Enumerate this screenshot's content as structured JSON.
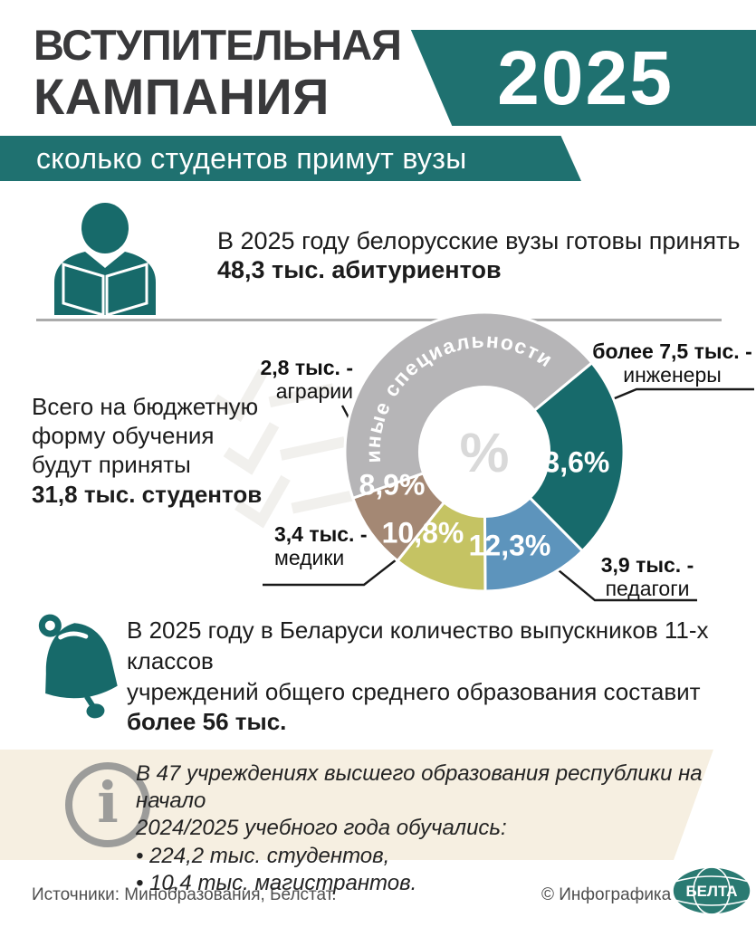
{
  "header": {
    "title_line1": "ВСТУПИТЕЛЬНАЯ",
    "title_line2": "КАМПАНИЯ",
    "year_badge": "2025",
    "subtitle_banner": "сколько студентов примут вузы"
  },
  "colors": {
    "accent_teal": "#1f7170",
    "icon_teal": "#176a6a",
    "header_text": "#39393b",
    "info_box_bg": "#f6efe1"
  },
  "fact_admission": {
    "line1": "В 2025 году белорусские вузы готовы принять",
    "line2_bold": "48,3 тыс. абитуриентов"
  },
  "budget_note": {
    "lines": [
      "Всего на бюджетную",
      "форму обучения",
      "будут приняты"
    ],
    "bold_line": "31,8 тыс. студентов"
  },
  "chart_data": {
    "type": "donut",
    "title": "сколько студентов примут вузы",
    "center_label": "%",
    "start_angle_deg": 50.4,
    "segments": [
      {
        "label": "инженеры",
        "value_label": "более 7,5 тыс.",
        "value_pct": 23.6,
        "pct_label": "23,6%",
        "color": "#176a6b"
      },
      {
        "label": "педагоги",
        "value_label": "3,9 тыс.",
        "value_pct": 12.3,
        "pct_label": "12,3%",
        "color": "#5d94bc"
      },
      {
        "label": "медики",
        "value_label": "3,4 тыс.",
        "value_pct": 10.8,
        "pct_label": "10,8%",
        "color": "#c5c363"
      },
      {
        "label": "аграрии",
        "value_label": "2,8 тыс.",
        "value_pct": 8.9,
        "pct_label": "8,9%",
        "color": "#a48874"
      },
      {
        "label": "иные специальности",
        "value_label": "",
        "value_pct": 44.4,
        "pct_label": "",
        "color": "#b6b5b7",
        "arc_text": "иные специальности"
      }
    ],
    "callouts": {
      "engineers": {
        "value": "более 7,5 тыс. -",
        "name": "инженеры"
      },
      "teachers": {
        "value": "3,9 тыс. -",
        "name": "педагоги"
      },
      "medics": {
        "value": "3,4 тыс. -",
        "name": "медики"
      },
      "agrarians": {
        "value": "2,8 тыс. -",
        "name": "аграрии"
      }
    }
  },
  "fact_graduates": {
    "line1": "В 2025 году в Беларуси количество выпускников 11-х классов",
    "line2": "учреждений общего среднего образования составит",
    "line3_bold": "более 56 тыс."
  },
  "info_box": {
    "line1": "В 47 учреждениях высшего образования республики на начало",
    "line2": "2024/2025 учебного года обучались:",
    "bullet1": "• 224,2 тыс. студентов,",
    "bullet2": "• 10,4 тыс. магистрантов."
  },
  "footer": {
    "sources": "Источники: Минобразования, Белстат.",
    "credit": "© Инфографика",
    "logo_text": "БЕЛТА"
  }
}
